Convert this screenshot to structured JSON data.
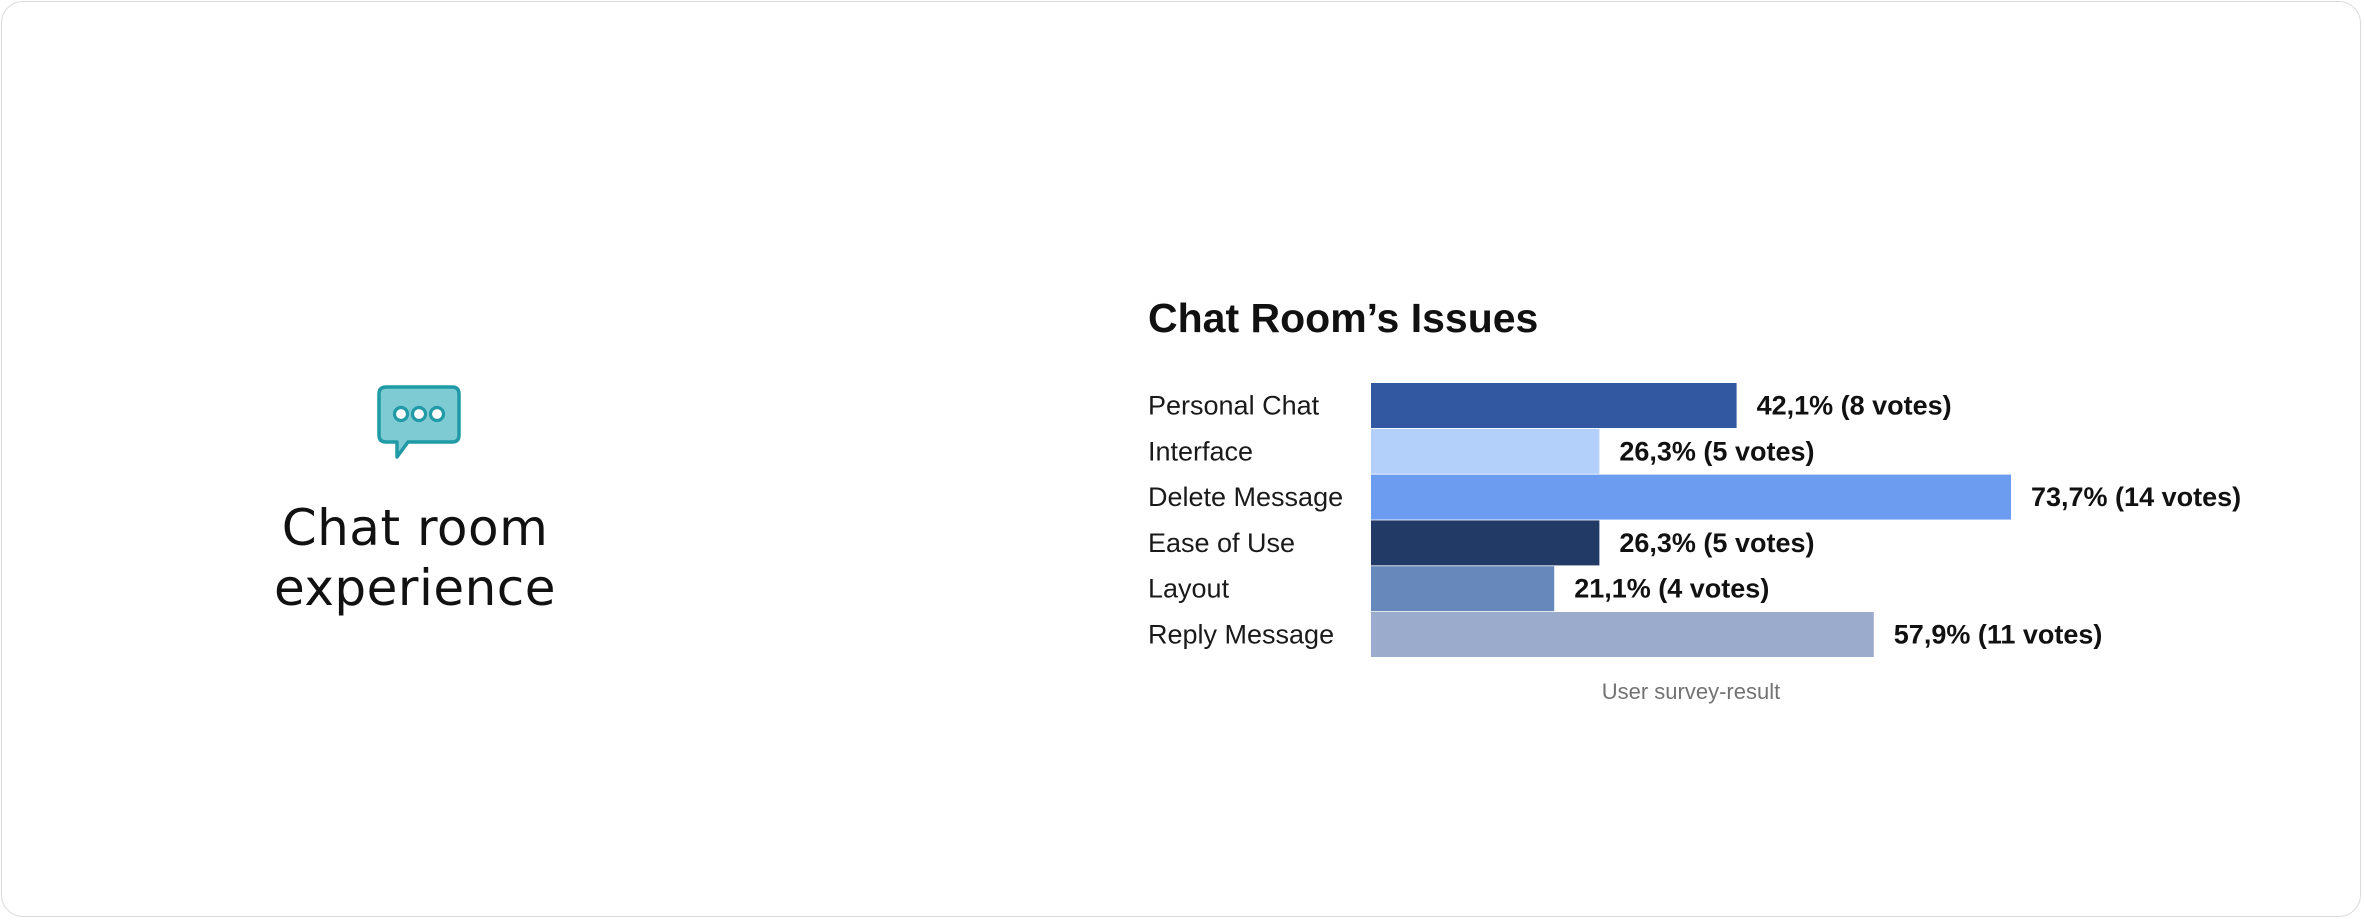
{
  "left_panel": {
    "icon": "chat-bubble-ellipsis-icon",
    "title": "Chat room experience",
    "icon_colors": {
      "fill": "#7fcbd3",
      "stroke": "#1f9aa6",
      "dots_fill": "#ffffff"
    }
  },
  "chart_data": {
    "type": "bar",
    "orientation": "horizontal",
    "title": "Chat Room’s Issues",
    "caption": "User survey-result",
    "categories": [
      "Personal Chat",
      "Interface",
      "Delete Message",
      "Ease of Use",
      "Layout",
      "Reply Message"
    ],
    "values": [
      42.1,
      26.3,
      73.7,
      26.3,
      21.1,
      57.9
    ],
    "value_labels": [
      "42,1% (8 votes)",
      "26,3% (5 votes)",
      "73,7% (14 votes)",
      "26,3% (5 votes)",
      "21,1% (4 votes)",
      "57,9% (11 votes)"
    ],
    "colors": [
      "#3358a2",
      "#b3d0fb",
      "#6b9cf0",
      "#213a66",
      "#6788ba",
      "#9babcc"
    ],
    "xlim": [
      0,
      100
    ],
    "grid": false,
    "legend": "none"
  }
}
